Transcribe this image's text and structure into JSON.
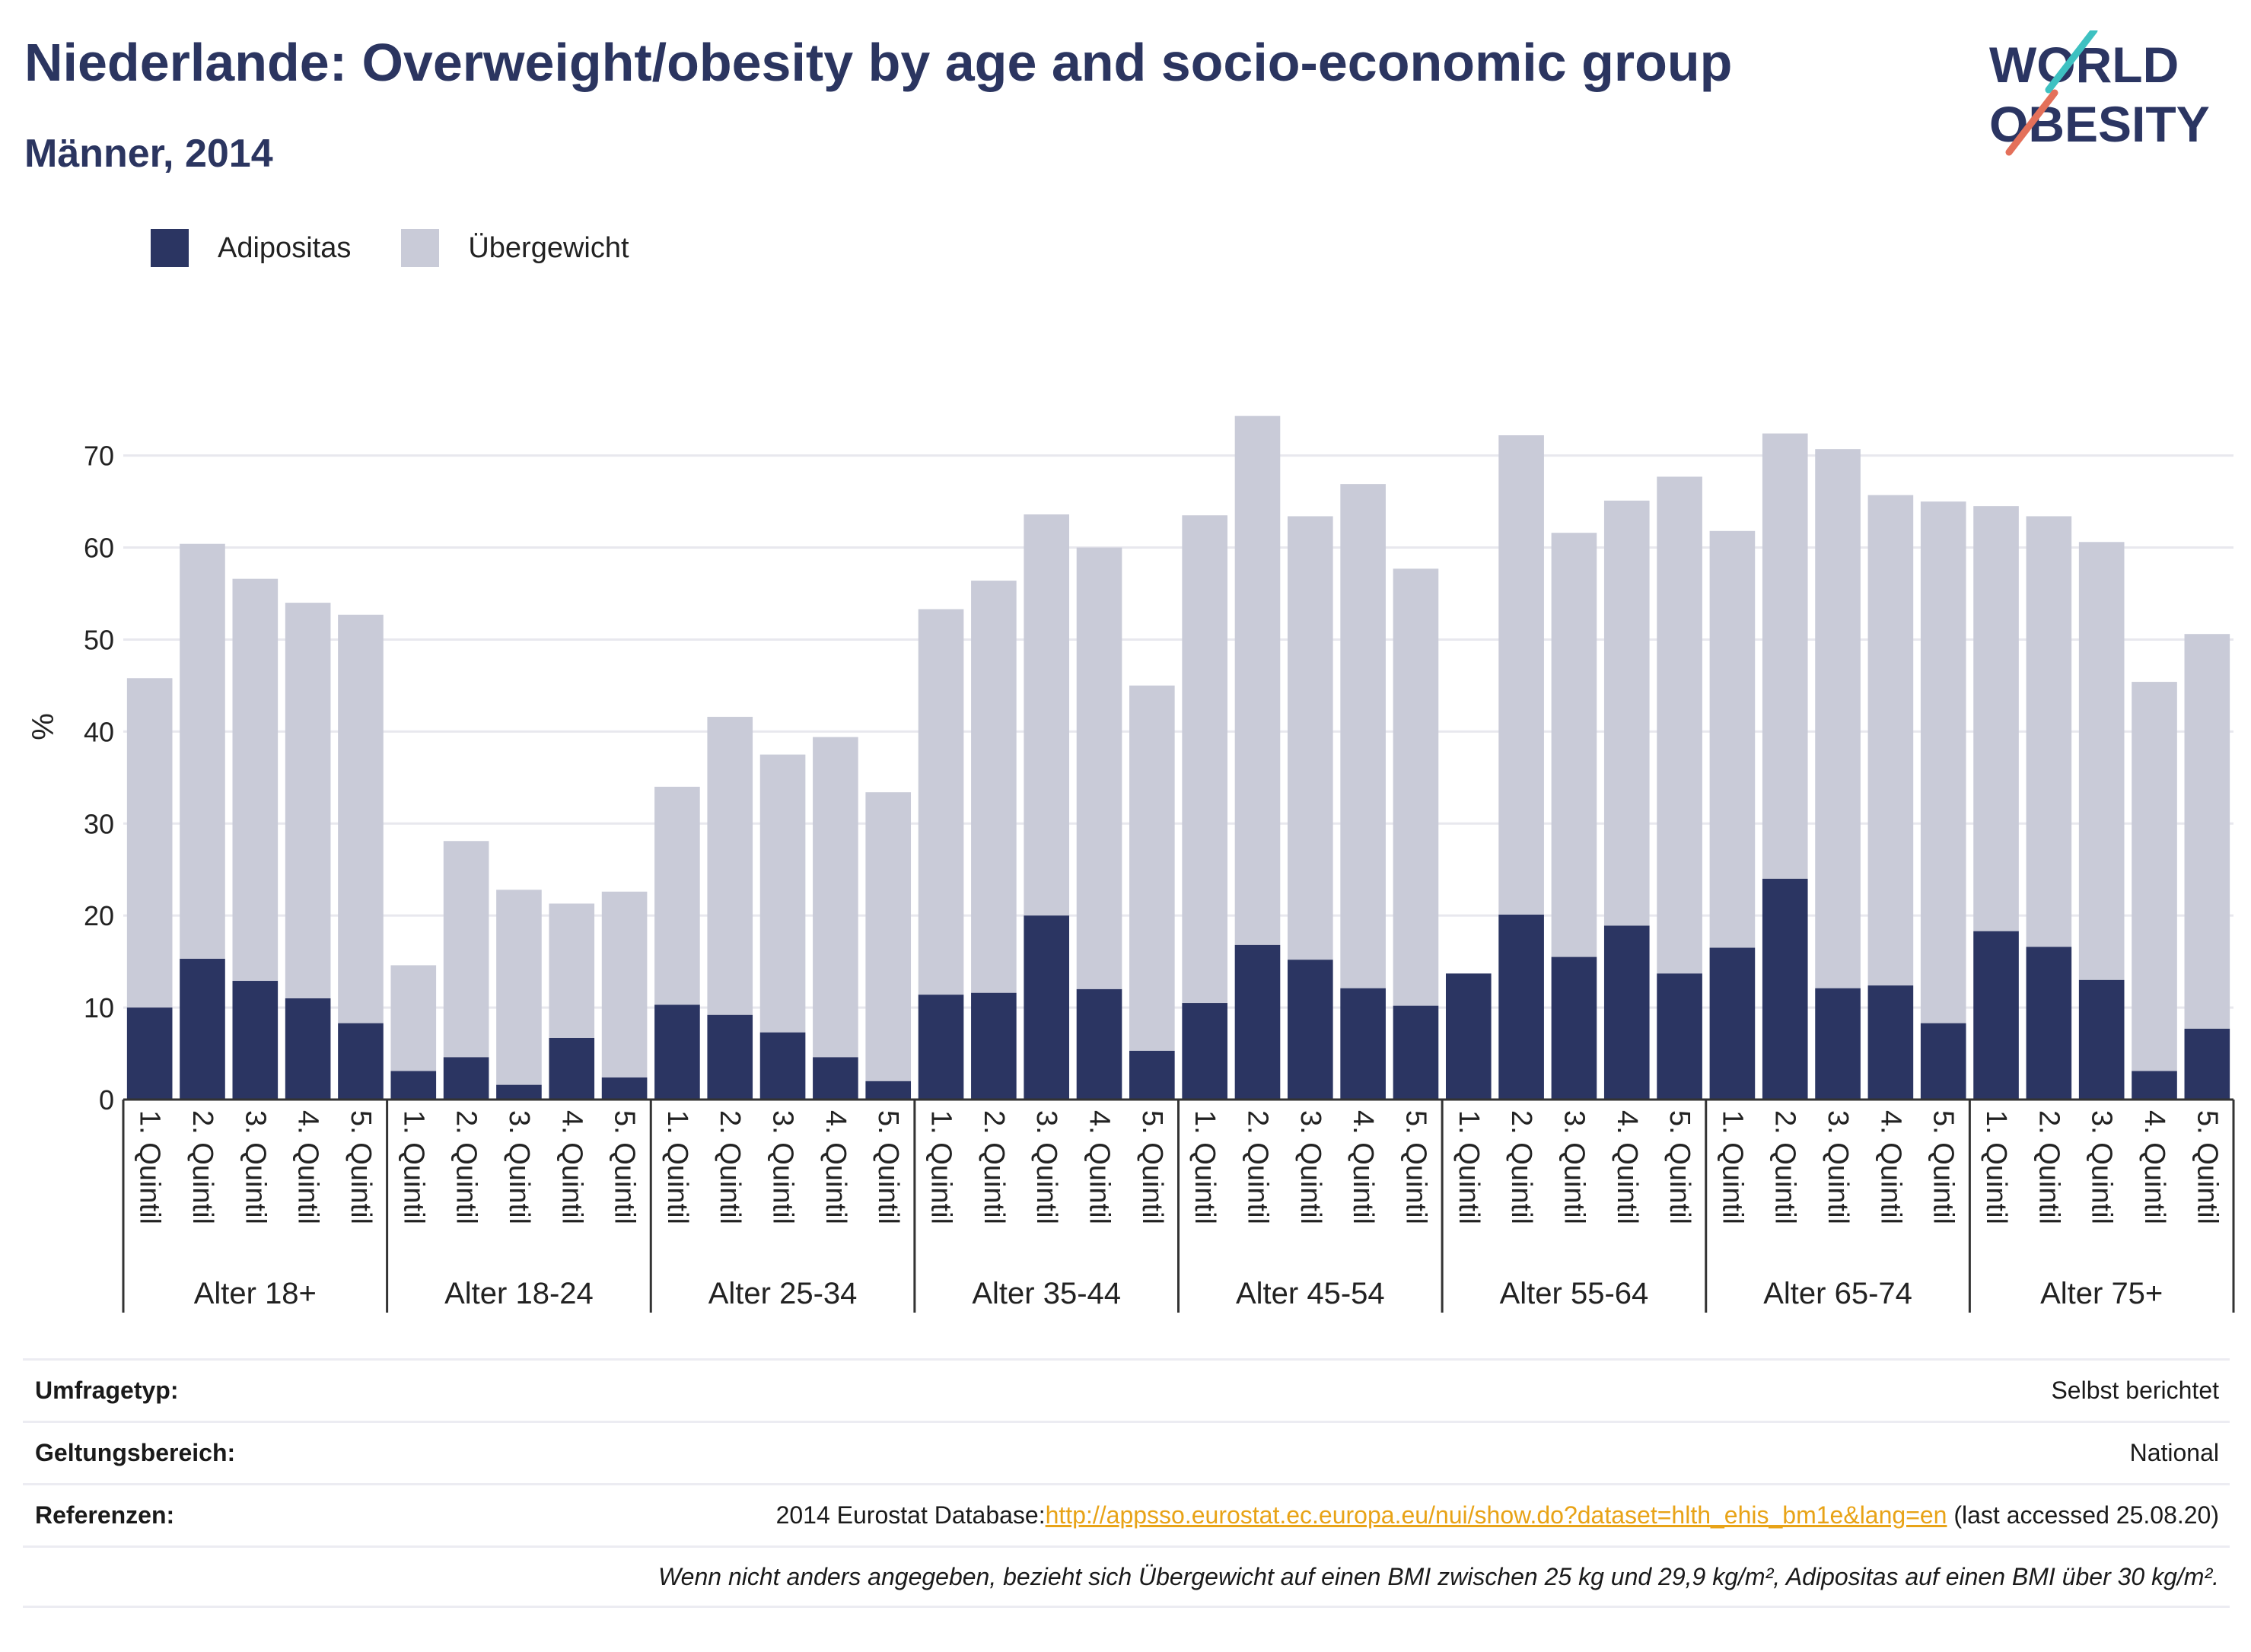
{
  "header": {
    "title": "Niederlande: Overweight/obesity by age and socio-economic group",
    "subtitle": "Männer, 2014"
  },
  "logo": {
    "line1": "WORLD",
    "line2": "OBESITY"
  },
  "colors": {
    "obesity": "#2b3562",
    "overweight": "#c9cbd8",
    "title": "#2b3560",
    "link": "#e8a317"
  },
  "chart_data": {
    "type": "bar",
    "stacked": true,
    "ylabel": "%",
    "ylim": [
      0,
      77
    ],
    "yticks": [
      0,
      10,
      20,
      30,
      40,
      50,
      60,
      70
    ],
    "grid": true,
    "legend_position": "top-left",
    "series": [
      {
        "name": "Adipositas",
        "color": "#2b3562"
      },
      {
        "name": "Übergewicht",
        "color": "#c9cbd8"
      }
    ],
    "groups": [
      {
        "label": "Alter 18+",
        "bars": [
          {
            "label": "1. Quintil",
            "obesity": 10.0,
            "total": 45.8
          },
          {
            "label": "2. Quintil",
            "obesity": 15.3,
            "total": 60.4
          },
          {
            "label": "3. Quintil",
            "obesity": 12.9,
            "total": 56.6
          },
          {
            "label": "4. Quintil",
            "obesity": 11.0,
            "total": 54.0
          },
          {
            "label": "5. Quintil",
            "obesity": 8.3,
            "total": 52.7
          }
        ]
      },
      {
        "label": "Alter 18-24",
        "bars": [
          {
            "label": "1. Quintil",
            "obesity": 3.1,
            "total": 14.6
          },
          {
            "label": "2. Quintil",
            "obesity": 4.6,
            "total": 28.1
          },
          {
            "label": "3. Quintil",
            "obesity": 1.6,
            "total": 22.8
          },
          {
            "label": "4. Quintil",
            "obesity": 6.7,
            "total": 21.3
          },
          {
            "label": "5. Quintil",
            "obesity": 2.4,
            "total": 22.6
          }
        ]
      },
      {
        "label": "Alter 25-34",
        "bars": [
          {
            "label": "1. Quintil",
            "obesity": 10.3,
            "total": 34.0
          },
          {
            "label": "2. Quintil",
            "obesity": 9.2,
            "total": 41.6
          },
          {
            "label": "3. Quintil",
            "obesity": 7.3,
            "total": 37.5
          },
          {
            "label": "4. Quintil",
            "obesity": 4.6,
            "total": 39.4
          },
          {
            "label": "5. Quintil",
            "obesity": 2.0,
            "total": 33.4
          }
        ]
      },
      {
        "label": "Alter 35-44",
        "bars": [
          {
            "label": "1. Quintil",
            "obesity": 11.4,
            "total": 53.3
          },
          {
            "label": "2. Quintil",
            "obesity": 11.6,
            "total": 56.4
          },
          {
            "label": "3. Quintil",
            "obesity": 20.0,
            "total": 63.6
          },
          {
            "label": "4. Quintil",
            "obesity": 12.0,
            "total": 60.0
          },
          {
            "label": "5. Quintil",
            "obesity": 5.3,
            "total": 45.0
          }
        ]
      },
      {
        "label": "Alter 45-54",
        "bars": [
          {
            "label": "1. Quintil",
            "obesity": 10.5,
            "total": 63.5
          },
          {
            "label": "2. Quintil",
            "obesity": 16.8,
            "total": 74.3
          },
          {
            "label": "3. Quintil",
            "obesity": 15.2,
            "total": 63.4
          },
          {
            "label": "4. Quintil",
            "obesity": 12.1,
            "total": 66.9
          },
          {
            "label": "5. Quintil",
            "obesity": 10.2,
            "total": 57.7
          }
        ]
      },
      {
        "label": "Alter 55-64",
        "bars": [
          {
            "label": "1. Quintil",
            "obesity": 13.7,
            "total": 13.7
          },
          {
            "label": "2. Quintil",
            "obesity": 20.1,
            "total": 72.2
          },
          {
            "label": "3. Quintil",
            "obesity": 15.5,
            "total": 61.6
          },
          {
            "label": "4. Quintil",
            "obesity": 18.9,
            "total": 65.1
          },
          {
            "label": "5. Quintil",
            "obesity": 13.7,
            "total": 67.7
          }
        ]
      },
      {
        "label": "Alter 65-74",
        "bars": [
          {
            "label": "1. Quintil",
            "obesity": 16.5,
            "total": 61.8
          },
          {
            "label": "2. Quintil",
            "obesity": 24.0,
            "total": 72.4
          },
          {
            "label": "3. Quintil",
            "obesity": 12.1,
            "total": 70.7
          },
          {
            "label": "4. Quintil",
            "obesity": 12.4,
            "total": 65.7
          },
          {
            "label": "5. Quintil",
            "obesity": 8.3,
            "total": 65.0
          }
        ]
      },
      {
        "label": "Alter 75+",
        "bars": [
          {
            "label": "1. Quintil",
            "obesity": 18.3,
            "total": 64.5
          },
          {
            "label": "2. Quintil",
            "obesity": 16.6,
            "total": 63.4
          },
          {
            "label": "3. Quintil",
            "obesity": 13.0,
            "total": 60.6
          },
          {
            "label": "4. Quintil",
            "obesity": 3.1,
            "total": 45.4
          },
          {
            "label": "5. Quintil",
            "obesity": 7.7,
            "total": 50.6
          }
        ]
      }
    ]
  },
  "info": {
    "survey_label": "Umfragetyp:",
    "survey_value": "Selbst berichtet",
    "scope_label": "Geltungsbereich:",
    "scope_value": "National",
    "ref_label": "Referenzen:",
    "ref_prefix": "2014 Eurostat Database:",
    "ref_link": "http://appsso.eurostat.ec.europa.eu/nui/show.do?dataset=hlth_ehis_bm1e&lang=en",
    "ref_suffix": " (last accessed 25.08.20)",
    "note": "Wenn nicht anders angegeben, bezieht sich Übergewicht auf einen BMI zwischen 25 kg und 29,9 kg/m², Adipositas auf einen BMI über 30 kg/m²."
  }
}
